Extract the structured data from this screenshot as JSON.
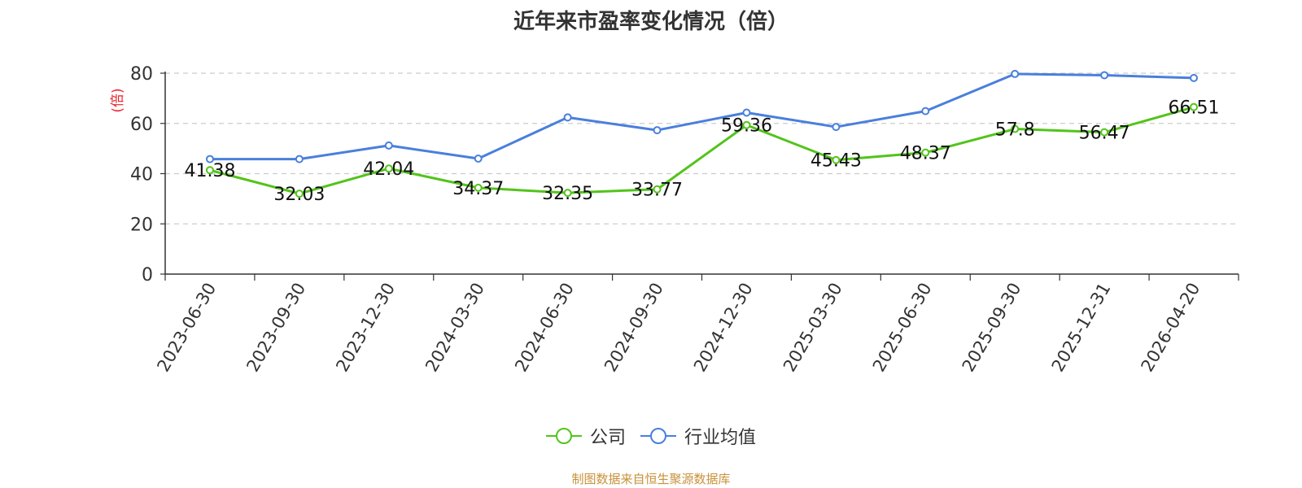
{
  "chart_data": {
    "type": "line",
    "title": "近年来市盈率变化情况（倍）",
    "ylabel": "(倍)",
    "ylim": [
      0,
      80
    ],
    "yticks": [
      0,
      20,
      40,
      60,
      80
    ],
    "grid": true,
    "legend_position": "bottom-center",
    "categories": [
      "2023-06-30",
      "2023-09-30",
      "2023-12-30",
      "2024-03-30",
      "2024-06-30",
      "2024-09-30",
      "2024-12-30",
      "2025-03-30",
      "2025-06-30",
      "2025-09-30",
      "2025-12-31",
      "2026-04-20"
    ],
    "series": [
      {
        "name": "公司",
        "color": "#52c41a",
        "values": [
          41.38,
          32.03,
          42.04,
          34.37,
          32.35,
          33.77,
          59.36,
          45.43,
          48.37,
          57.8,
          56.47,
          66.51
        ],
        "labels": [
          "41.38",
          "32.03",
          "42.04",
          "34.37",
          "32.35",
          "33.77",
          "59.36",
          "45.43",
          "48.37",
          "57.8",
          "56.47",
          "66.51"
        ]
      },
      {
        "name": "行业均值",
        "color": "#4a7fdc",
        "values": [
          45.8,
          45.8,
          51.2,
          46.0,
          62.4,
          57.3,
          64.3,
          58.6,
          64.9,
          79.7,
          79.2,
          78.1
        ]
      }
    ]
  },
  "source_note": "制图数据来自恒生聚源数据库",
  "colors": {
    "axis": "#333333",
    "grid": "#cccccc",
    "ylabel": "#e8212a",
    "source": "#c8913a"
  }
}
